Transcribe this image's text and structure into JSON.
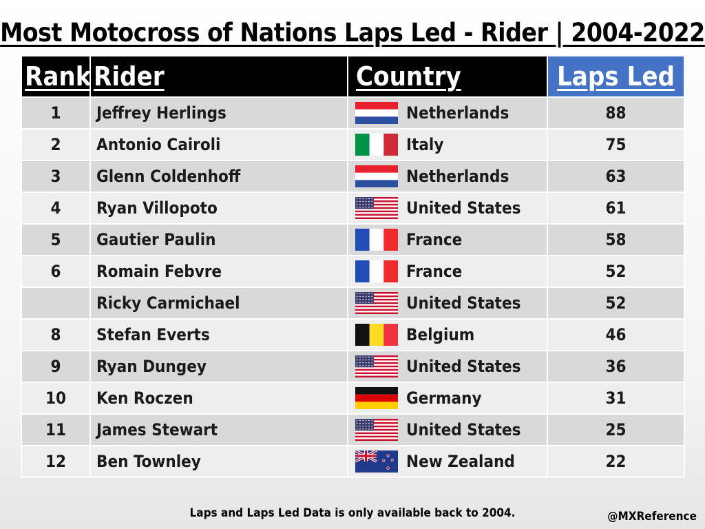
{
  "title": "Most Motocross of Nations Laps Led - Rider | 2004-2022",
  "headers": {
    "rank": "Rank",
    "rider": "Rider",
    "country": "Country",
    "laps": "Laps Led"
  },
  "colors": {
    "header_bg": "#000000",
    "laps_header_bg": "#4472c4",
    "row_odd": "#d9d9d9",
    "row_even": "#eeeeee"
  },
  "chart_data": {
    "type": "table",
    "title": "Most Motocross of Nations Laps Led - Rider | 2004-2022",
    "columns": [
      "Rank",
      "Rider",
      "Country",
      "Laps Led"
    ],
    "rows": [
      {
        "rank": "1",
        "rider": "Jeffrey Herlings",
        "country": "Netherlands",
        "flag": "netherlands-flag-icon",
        "laps": 88
      },
      {
        "rank": "2",
        "rider": "Antonio Cairoli",
        "country": "Italy",
        "flag": "italy-flag-icon",
        "laps": 75
      },
      {
        "rank": "3",
        "rider": "Glenn Coldenhoff",
        "country": "Netherlands",
        "flag": "netherlands-flag-icon",
        "laps": 63
      },
      {
        "rank": "4",
        "rider": "Ryan Villopoto",
        "country": "United States",
        "flag": "usa-flag-icon",
        "laps": 61
      },
      {
        "rank": "5",
        "rider": "Gautier Paulin",
        "country": "France",
        "flag": "france-flag-icon",
        "laps": 58
      },
      {
        "rank": "6",
        "rider": "Romain Febvre",
        "country": "France",
        "flag": "france-flag-icon",
        "laps": 52
      },
      {
        "rank": "",
        "rider": "Ricky Carmichael",
        "country": "United States",
        "flag": "usa-flag-icon",
        "laps": 52
      },
      {
        "rank": "8",
        "rider": "Stefan Everts",
        "country": "Belgium",
        "flag": "belgium-flag-icon",
        "laps": 46
      },
      {
        "rank": "9",
        "rider": "Ryan Dungey",
        "country": "United States",
        "flag": "usa-flag-icon",
        "laps": 36
      },
      {
        "rank": "10",
        "rider": "Ken Roczen",
        "country": "Germany",
        "flag": "germany-flag-icon",
        "laps": 31
      },
      {
        "rank": "11",
        "rider": "James Stewart",
        "country": "United States",
        "flag": "usa-flag-icon",
        "laps": 25
      },
      {
        "rank": "12",
        "rider": "Ben Townley",
        "country": "New Zealand",
        "flag": "new-zealand-flag-icon",
        "laps": 22
      }
    ]
  },
  "footnote": "Laps and Laps Led Data is only available back to 2004.",
  "handle": "@MXReference"
}
